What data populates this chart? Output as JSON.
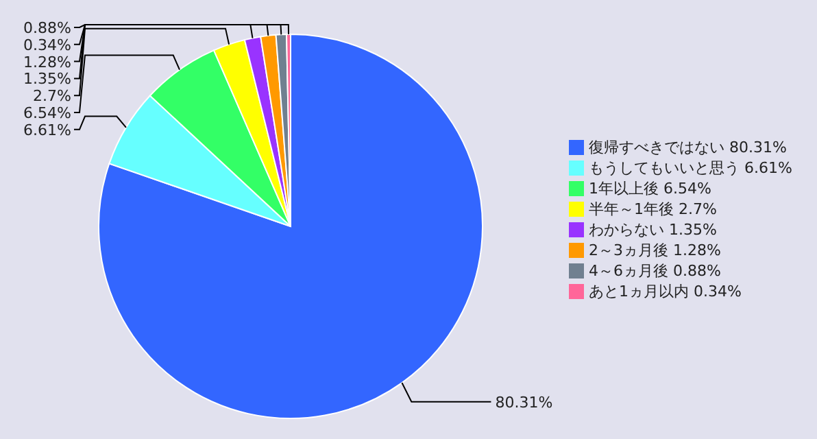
{
  "chart_data": {
    "type": "pie",
    "categories": [
      "復帰すべきではない 80.31%",
      "もうしてもいいと思う 6.61%",
      "1年以上後 6.54%",
      "半年～1年後 2.7%",
      "わからない 1.35%",
      "2～3ヵ月後 1.28%",
      "4～6ヵ月後 0.88%",
      "あと1ヵ月以内 0.34%"
    ],
    "values": [
      80.31,
      6.61,
      6.54,
      2.7,
      1.35,
      1.28,
      0.88,
      0.34
    ],
    "colors": [
      "#3366ff",
      "#66ffff",
      "#33ff66",
      "#ffff00",
      "#9933ff",
      "#ff9900",
      "#708090",
      "#ff6699"
    ],
    "value_labels": [
      "80.31%",
      "6.61%",
      "6.54%",
      "2.7%",
      "1.35%",
      "1.28%",
      "0.88%",
      "0.34%"
    ],
    "legend": "right"
  }
}
